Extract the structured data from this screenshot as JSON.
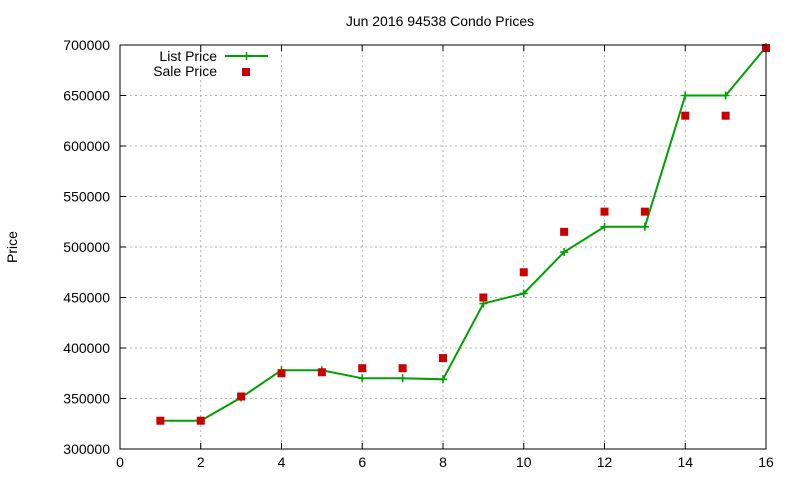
{
  "chart_data": {
    "type": "line",
    "title": "Jun 2016 94538 Condo Prices",
    "xlabel": "",
    "ylabel": "Price",
    "xlim": [
      0,
      16
    ],
    "ylim": [
      300000,
      700000
    ],
    "xticks": [
      "0",
      "2",
      "4",
      "6",
      "8",
      "10",
      "12",
      "14",
      "16"
    ],
    "yticks": [
      "300000",
      "350000",
      "400000",
      "450000",
      "500000",
      "550000",
      "600000",
      "650000",
      "700000"
    ],
    "grid": true,
    "legend_position": "top-left",
    "series": [
      {
        "name": "List Price",
        "style": "line-with-plus-markers",
        "color": "#00a000",
        "x": [
          1,
          2,
          3,
          4,
          5,
          6,
          7,
          8,
          9,
          10,
          11,
          12,
          13,
          14,
          15,
          16
        ],
        "y": [
          328000,
          328000,
          351000,
          378000,
          378000,
          370000,
          370000,
          369000,
          444000,
          454000,
          495000,
          520000,
          520000,
          650000,
          650000,
          698000
        ]
      },
      {
        "name": "Sale Price",
        "style": "square-markers",
        "color": "#cc0000",
        "x": [
          1,
          2,
          3,
          4,
          5,
          6,
          7,
          8,
          9,
          10,
          11,
          12,
          13,
          14,
          15,
          16
        ],
        "y": [
          328000,
          328000,
          352000,
          375000,
          376000,
          380000,
          380000,
          390000,
          450000,
          475000,
          515000,
          535000,
          535000,
          630000,
          630000,
          697000
        ]
      }
    ]
  }
}
